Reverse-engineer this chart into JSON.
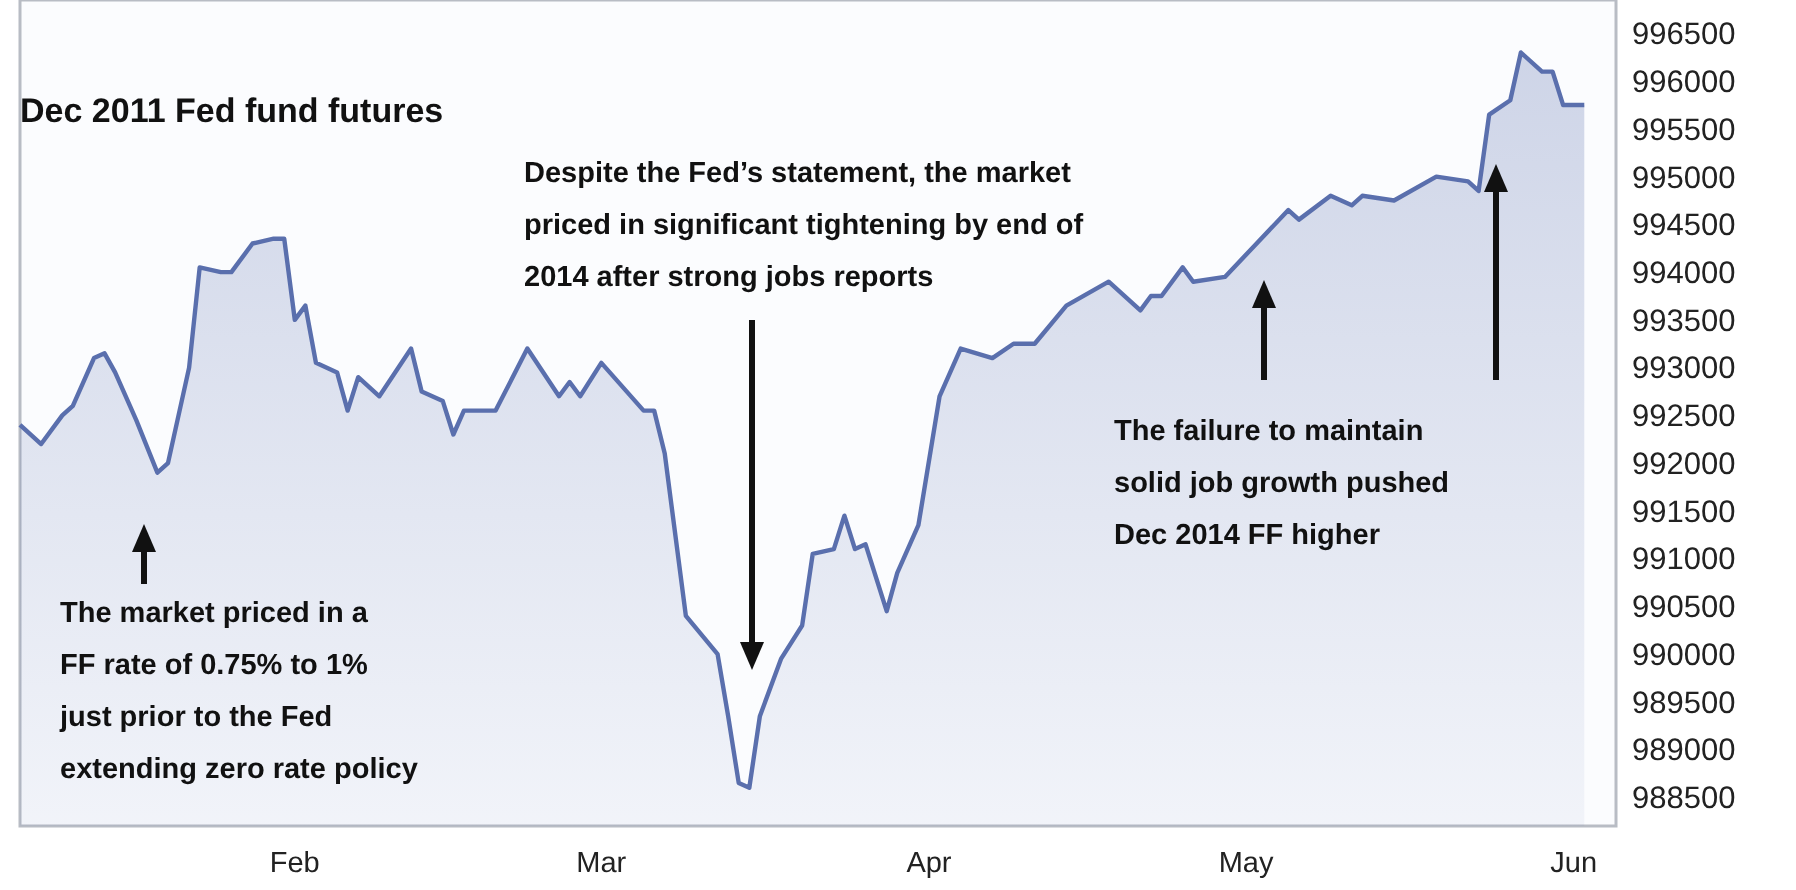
{
  "chart_data": {
    "type": "area",
    "title": "Dec 2011 Fed fund futures",
    "x": [
      "--01-06",
      "--01-08",
      "--01-10",
      "--01-11",
      "--01-13",
      "--01-14",
      "--01-15",
      "--01-17",
      "--01-19",
      "--01-20",
      "--01-22",
      "--01-23",
      "--01-25",
      "--01-26",
      "--01-28",
      "--01-30",
      "--01-31",
      "--02-01",
      "--02-02",
      "--02-03",
      "--02-05",
      "--02-06",
      "--02-07",
      "--02-09",
      "--02-12",
      "--02-13",
      "--02-15",
      "--02-16",
      "--02-17",
      "--02-20",
      "--02-23",
      "--02-26",
      "--02-27",
      "--02-28",
      "--03-01",
      "--03-05",
      "--03-06",
      "--03-07",
      "--03-09",
      "--03-12",
      "--03-13",
      "--03-14",
      "--03-15",
      "--03-16",
      "--03-18",
      "--03-20",
      "--03-21",
      "--03-23",
      "--03-24",
      "--03-25",
      "--03-26",
      "--03-28",
      "--03-29",
      "--03-31",
      "--04-02",
      "--04-04",
      "--04-07",
      "--04-09",
      "--04-11",
      "--04-14",
      "--04-18",
      "--04-21",
      "--04-22",
      "--04-23",
      "--04-25",
      "--04-26",
      "--04-29",
      "--05-02",
      "--05-05",
      "--05-06",
      "--05-09",
      "--05-11",
      "--05-12",
      "--05-15",
      "--05-19",
      "--05-22",
      "--05-23",
      "--05-24",
      "--05-26",
      "--05-27",
      "--05-29",
      "--05-30",
      "--05-31",
      "--06-02"
    ],
    "series": [
      {
        "color": "#5a6fad",
        "values": [
          992400,
          992200,
          992500,
          992600,
          993100,
          993150,
          992950,
          992450,
          991900,
          992000,
          993000,
          994050,
          994000,
          994000,
          994300,
          994350,
          994350,
          993500,
          993650,
          993050,
          992950,
          992550,
          992900,
          992700,
          993200,
          992750,
          992650,
          992300,
          992550,
          992550,
          993200,
          992700,
          992850,
          992700,
          993050,
          992550,
          992550,
          992100,
          990400,
          990000,
          989350,
          988650,
          988600,
          989350,
          989950,
          990300,
          991050,
          991100,
          991450,
          991100,
          991150,
          990450,
          990850,
          991350,
          992700,
          993200,
          993100,
          993250,
          993250,
          993650,
          993900,
          993600,
          993750,
          993750,
          994050,
          993900,
          993950,
          994300,
          994650,
          994550,
          994800,
          994700,
          994800,
          994750,
          995000,
          994950,
          994850,
          995650,
          995800,
          996300,
          996100,
          996100,
          995750,
          995750
        ]
      }
    ],
    "xlim": [
      "--01-06",
      "--06-05"
    ],
    "xticks": [
      {
        "value": "--02-01",
        "label": "Feb"
      },
      {
        "value": "--03-01",
        "label": "Mar"
      },
      {
        "value": "--04-01",
        "label": "Apr"
      },
      {
        "value": "--05-01",
        "label": "May"
      },
      {
        "value": "--06-01",
        "label": "Jun"
      }
    ],
    "ylim": [
      988200,
      996850
    ],
    "yticks": [
      988500,
      989000,
      989500,
      990000,
      990500,
      991000,
      991500,
      992000,
      992500,
      993000,
      993500,
      994000,
      994500,
      995000,
      995500,
      996000,
      996500
    ],
    "grid": false,
    "annotations": [
      "The market priced in a\nFF rate of 0.75% to 1%\njust prior to the Fed\nextending zero rate policy",
      "Despite the Fed’s statement, the market\npriced in significant tightening by end of\n2014 after strong jobs reports",
      "The failure to maintain\nsolid job growth pushed\nDec 2014 FF higher"
    ]
  }
}
